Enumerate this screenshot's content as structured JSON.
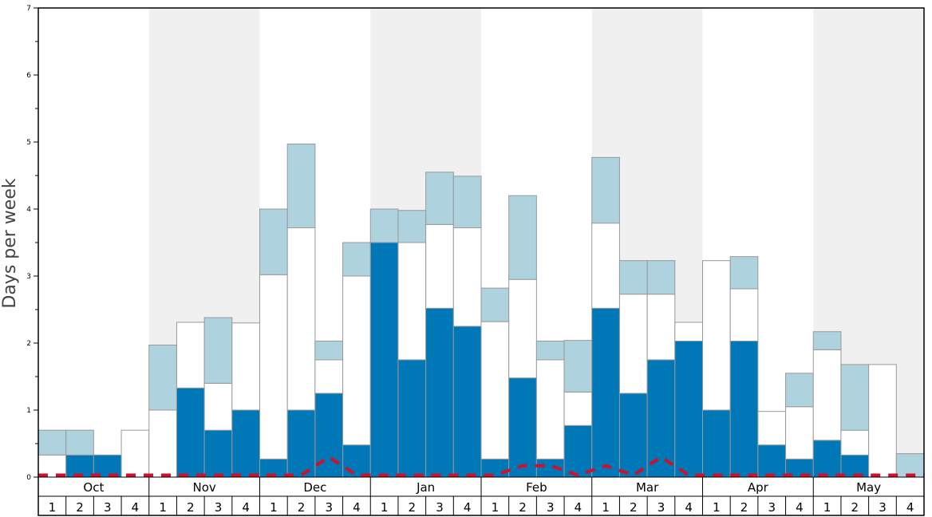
{
  "chart_data": {
    "type": "bar",
    "stacked": true,
    "ylabel": "Days per week",
    "ylim": [
      0,
      7
    ],
    "yticks": [
      "0",
      "1",
      "2",
      "3",
      "4",
      "5",
      "6",
      "7"
    ],
    "months": [
      "Oct",
      "Nov",
      "Dec",
      "Jan",
      "Feb",
      "Mar",
      "Apr",
      "May"
    ],
    "weeks": [
      "1",
      "2",
      "3",
      "4"
    ],
    "colors": {
      "dark": "#0077b6",
      "white": "#ffffff",
      "light": "#aed3df",
      "band": "#f0f0f0",
      "line": "#d0102a",
      "edge": "#999999"
    },
    "series": [
      {
        "color": "dark",
        "values": [
          0,
          0.33,
          0.33,
          0,
          0,
          1.33,
          0.7,
          1.0,
          0.27,
          1.0,
          1.25,
          0.48,
          3.5,
          1.75,
          2.52,
          2.25,
          0.27,
          1.48,
          0.27,
          0.77,
          2.52,
          1.25,
          1.75,
          2.03,
          1.0,
          2.03,
          0.48,
          0.27,
          0.55,
          0.33,
          0,
          0
        ]
      },
      {
        "color": "white",
        "values": [
          0.33,
          0,
          0,
          0.7,
          1.0,
          0.98,
          0.7,
          1.3,
          2.75,
          2.72,
          0.5,
          2.52,
          0,
          1.75,
          1.25,
          1.47,
          2.05,
          1.47,
          1.48,
          0.5,
          1.27,
          1.48,
          0.98,
          0.28,
          2.23,
          0.78,
          0.5,
          0.78,
          1.35,
          0.37,
          1.68,
          0
        ]
      },
      {
        "color": "light",
        "values": [
          0.37,
          0.37,
          0,
          0,
          0.97,
          0,
          0.98,
          0,
          0.98,
          1.25,
          0.28,
          0.5,
          0.5,
          0.48,
          0.78,
          0.77,
          0.5,
          1.25,
          0.28,
          0.77,
          0.98,
          0.5,
          0.5,
          0,
          0,
          0.48,
          0,
          0.5,
          0.27,
          0.98,
          0,
          0.35
        ]
      }
    ],
    "line": {
      "color": "line",
      "style": "dashed",
      "values": [
        0.03,
        0.03,
        0.03,
        0.03,
        0.03,
        0.03,
        0.03,
        0.03,
        0.03,
        0.03,
        0.3,
        0.03,
        0.03,
        0.03,
        0.03,
        0.03,
        0.03,
        0.17,
        0.17,
        0.03,
        0.17,
        0.03,
        0.3,
        0.03,
        0.03,
        0.03,
        0.03,
        0.03,
        0.03,
        0.03,
        0.03,
        0.03
      ]
    }
  }
}
